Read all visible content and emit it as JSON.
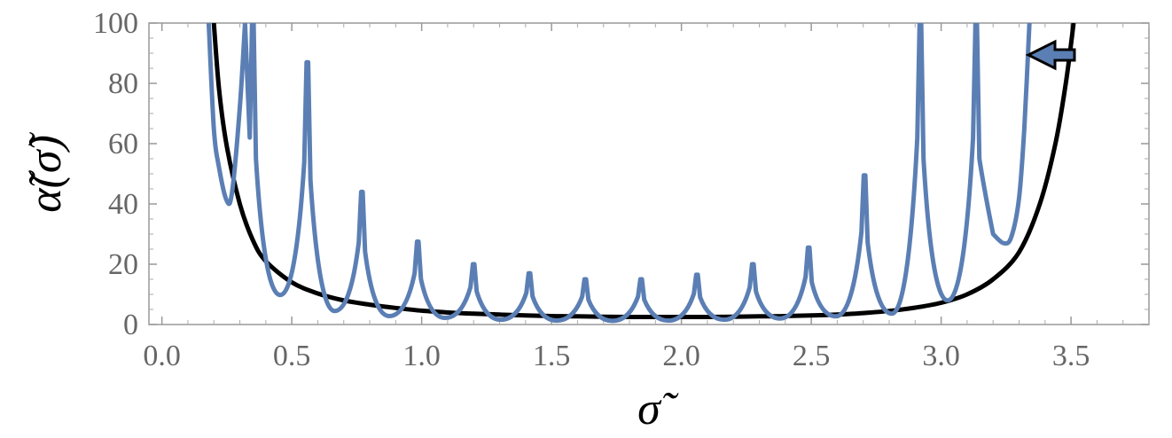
{
  "chart_data": {
    "type": "line",
    "xlabel": "σ̃",
    "ylabel": "α̃(σ̃)",
    "xlim": [
      -0.05,
      3.8
    ],
    "ylim": [
      0,
      100
    ],
    "x_ticks": [
      "0.0",
      "0.5",
      "1.0",
      "1.5",
      "2.0",
      "2.5",
      "3.0",
      "3.5"
    ],
    "x_tick_values": [
      0.0,
      0.5,
      1.0,
      1.5,
      2.0,
      2.5,
      3.0,
      3.5
    ],
    "y_ticks": [
      "0",
      "20",
      "40",
      "60",
      "80",
      "100"
    ],
    "y_tick_values": [
      0,
      20,
      40,
      60,
      80,
      100
    ],
    "grid": false,
    "annotation": "leftward arrow near top-right pointing from the black curve toward the blue curve",
    "series": [
      {
        "color": "#000000",
        "style": "smooth",
        "points": [
          [
            0.2,
            100
          ],
          [
            0.22,
            78
          ],
          [
            0.25,
            59
          ],
          [
            0.3,
            40
          ],
          [
            0.35,
            28
          ],
          [
            0.4,
            21
          ],
          [
            0.5,
            14
          ],
          [
            0.6,
            10.3
          ],
          [
            0.7,
            8
          ],
          [
            0.8,
            6.6
          ],
          [
            0.9,
            5.5
          ],
          [
            1.0,
            4.6
          ],
          [
            1.1,
            4.0
          ],
          [
            1.2,
            3.6
          ],
          [
            1.3,
            3.3
          ],
          [
            1.4,
            3.0
          ],
          [
            1.5,
            2.8
          ],
          [
            1.6,
            2.7
          ],
          [
            1.7,
            2.6
          ],
          [
            1.8,
            2.5
          ],
          [
            1.9,
            2.5
          ],
          [
            2.0,
            2.5
          ],
          [
            2.1,
            2.5
          ],
          [
            2.2,
            2.6
          ],
          [
            2.3,
            2.7
          ],
          [
            2.4,
            2.8
          ],
          [
            2.5,
            3.0
          ],
          [
            2.6,
            3.3
          ],
          [
            2.7,
            3.8
          ],
          [
            2.8,
            4.5
          ],
          [
            2.9,
            5.6
          ],
          [
            3.0,
            7.2
          ],
          [
            3.1,
            10
          ],
          [
            3.2,
            15
          ],
          [
            3.3,
            24
          ],
          [
            3.38,
            40
          ],
          [
            3.44,
            60
          ],
          [
            3.48,
            80
          ],
          [
            3.51,
            100
          ]
        ]
      },
      {
        "color": "#5b7fb4",
        "style": "resonance",
        "baseline": [
          [
            0.18,
            100
          ],
          [
            0.2,
            65
          ],
          [
            0.22,
            52
          ],
          [
            0.25,
            41
          ],
          [
            0.27,
            44
          ],
          [
            0.3,
            72
          ],
          [
            0.32,
            100
          ]
        ],
        "baseline_tail": [
          [
            3.2,
            30
          ],
          [
            3.24,
            27
          ],
          [
            3.27,
            29
          ],
          [
            3.3,
            42
          ],
          [
            3.32,
            65
          ],
          [
            3.34,
            100
          ]
        ],
        "peaks": [
          {
            "x": 0.35,
            "y": 100
          },
          {
            "x": 0.56,
            "y": 87
          },
          {
            "x": 0.77,
            "y": 44
          },
          {
            "x": 0.985,
            "y": 27.5
          },
          {
            "x": 1.2,
            "y": 20
          },
          {
            "x": 1.415,
            "y": 17
          },
          {
            "x": 1.63,
            "y": 15
          },
          {
            "x": 1.845,
            "y": 15
          },
          {
            "x": 2.06,
            "y": 16.5
          },
          {
            "x": 2.275,
            "y": 20
          },
          {
            "x": 2.49,
            "y": 25.5
          },
          {
            "x": 2.705,
            "y": 49.5
          },
          {
            "x": 2.92,
            "y": 100
          },
          {
            "x": 3.135,
            "y": 100
          }
        ],
        "valleys": [
          {
            "x": 0.455,
            "y": 9.8
          },
          {
            "x": 0.665,
            "y": 4.5
          },
          {
            "x": 0.875,
            "y": 2.8
          },
          {
            "x": 1.09,
            "y": 2.2
          },
          {
            "x": 1.305,
            "y": 1.6
          },
          {
            "x": 1.52,
            "y": 1.3
          },
          {
            "x": 1.735,
            "y": 1.2
          },
          {
            "x": 1.95,
            "y": 1.3
          },
          {
            "x": 2.165,
            "y": 1.6
          },
          {
            "x": 2.38,
            "y": 2.0
          },
          {
            "x": 2.595,
            "y": 2.7
          },
          {
            "x": 2.81,
            "y": 3.6
          },
          {
            "x": 3.025,
            "y": 8.0
          }
        ]
      }
    ]
  }
}
